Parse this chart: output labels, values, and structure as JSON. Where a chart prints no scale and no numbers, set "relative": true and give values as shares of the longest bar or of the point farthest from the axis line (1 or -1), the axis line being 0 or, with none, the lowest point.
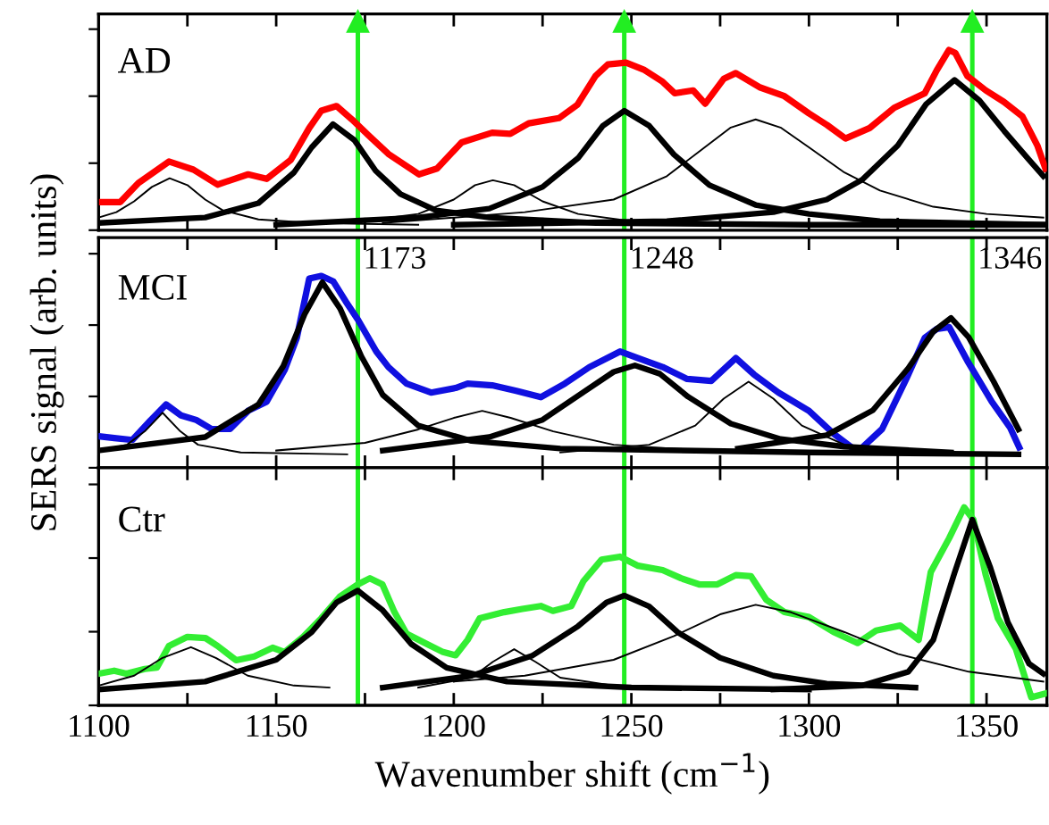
{
  "chart_data": [
    {
      "type": "line",
      "relative": true,
      "annotations": [
        "AD"
      ],
      "tick_labels": false,
      "xlim": [
        1100,
        1367
      ],
      "xticks": [
        1100,
        {
          "value": 1125,
          "label": null
        },
        1150,
        {
          "value": 1175,
          "label": null
        },
        1200,
        {
          "value": 1225,
          "label": null
        },
        1250,
        {
          "value": 1275,
          "label": null
        },
        1300,
        {
          "value": 1325,
          "label": null
        },
        1350
      ],
      "legend": false,
      "grid": false,
      "ref_lines": [
        {
          "axis": "x",
          "value": 1173,
          "color": "#22ee22"
        },
        {
          "axis": "x",
          "value": 1248,
          "color": "#22ee22"
        },
        {
          "axis": "x",
          "value": 1346,
          "color": "#22ee22"
        }
      ],
      "series": [
        {
          "color": "#ff0000",
          "x": [
            1101.0,
            1106.1,
            1111.2,
            1119.8,
            1126.7,
            1133.5,
            1142.1,
            1147.3,
            1154.1,
            1159.3,
            1162.7,
            1167.0,
            1171.3,
            1176.4,
            1181.6,
            1190.2,
            1195.3,
            1202.2,
            1210.8,
            1215.9,
            1221.1,
            1229.6,
            1234.8,
            1239.9,
            1243.4,
            1248.5,
            1253.7,
            1258.8,
            1262.2,
            1267.4,
            1270.8,
            1276.0,
            1279.4,
            1286.3,
            1293.1,
            1300.0,
            1305.1,
            1310.3,
            1317.1,
            1324.0,
            1332.6,
            1336.0,
            1339.4,
            1341.2,
            1344.6,
            1349.8,
            1354.9,
            1360.1,
            1364.3,
            1366.6
          ],
          "values": [
            0.156,
            0.156,
            0.262,
            0.381,
            0.336,
            0.253,
            0.31,
            0.285,
            0.39,
            0.567,
            0.663,
            0.689,
            0.615,
            0.519,
            0.423,
            0.31,
            0.342,
            0.487,
            0.541,
            0.535,
            0.593,
            0.622,
            0.696,
            0.856,
            0.92,
            0.93,
            0.889,
            0.824,
            0.76,
            0.776,
            0.702,
            0.84,
            0.872,
            0.792,
            0.744,
            0.648,
            0.584,
            0.509,
            0.567,
            0.679,
            0.76,
            0.888,
            1,
            0.984,
            0.856,
            0.776,
            0.712,
            0.632,
            0.471,
            0.342
          ]
        },
        {
          "color": "#000000",
          "x": [
            1100,
            1105,
            1110,
            1115,
            1120,
            1125,
            1130,
            1135,
            1145,
            1160,
            1190
          ],
          "values": [
            0.07,
            0.1,
            0.16,
            0.24,
            0.288,
            0.25,
            0.17,
            0.11,
            0.06,
            0.04,
            0.03
          ]
        },
        {
          "color": "#000000",
          "x": [
            1100,
            1130,
            1145,
            1155,
            1160,
            1166,
            1172,
            1178,
            1185,
            1195,
            1210,
            1240,
            1300,
            1366
          ],
          "values": [
            0.04,
            0.07,
            0.15,
            0.32,
            0.46,
            0.589,
            0.5,
            0.33,
            0.2,
            0.11,
            0.07,
            0.04,
            0.03,
            0.03
          ]
        },
        {
          "color": "#000000",
          "x": [
            1170,
            1190,
            1200,
            1206,
            1211,
            1217,
            1225,
            1235,
            1250,
            1280
          ],
          "values": [
            0.04,
            0.09,
            0.17,
            0.25,
            0.277,
            0.25,
            0.16,
            0.09,
            0.05,
            0.03
          ]
        },
        {
          "color": "#000000",
          "x": [
            1150,
            1190,
            1210,
            1225,
            1235,
            1242,
            1248,
            1255,
            1262,
            1272,
            1285,
            1300,
            1320,
            1366
          ],
          "values": [
            0.03,
            0.07,
            0.12,
            0.24,
            0.4,
            0.58,
            0.663,
            0.58,
            0.42,
            0.25,
            0.14,
            0.09,
            0.05,
            0.03
          ]
        },
        {
          "color": "#000000",
          "x": [
            1180,
            1220,
            1245,
            1260,
            1270,
            1278,
            1285,
            1292,
            1300,
            1310,
            1320,
            1335,
            1350,
            1366
          ],
          "values": [
            0.04,
            0.1,
            0.17,
            0.3,
            0.45,
            0.57,
            0.615,
            0.57,
            0.46,
            0.32,
            0.22,
            0.13,
            0.09,
            0.07
          ]
        },
        {
          "color": "#000000",
          "x": [
            1200,
            1260,
            1290,
            1305,
            1315,
            1325,
            1333,
            1341,
            1348,
            1355,
            1362,
            1366
          ],
          "values": [
            0.03,
            0.05,
            0.1,
            0.17,
            0.28,
            0.47,
            0.7,
            0.834,
            0.72,
            0.55,
            0.39,
            0.3
          ]
        }
      ]
    },
    {
      "type": "line",
      "relative": true,
      "annotations": [
        "MCI"
      ],
      "ylabel": "SERS signal (arb. units)",
      "tick_labels": false,
      "xlim": [
        1100,
        1367
      ],
      "xticks": [
        1100,
        {
          "value": 1125,
          "label": null
        },
        1150,
        {
          "value": 1175,
          "label": null
        },
        1200,
        {
          "value": 1225,
          "label": null
        },
        1250,
        {
          "value": 1275,
          "label": null
        },
        1300,
        {
          "value": 1325,
          "label": null
        },
        1350
      ],
      "legend": false,
      "grid": false,
      "ref_lines": [
        {
          "axis": "x",
          "value": 1173,
          "label": "1173",
          "color": "#22ee22"
        },
        {
          "axis": "x",
          "value": 1248,
          "label": "1248",
          "color": "#22ee22"
        },
        {
          "axis": "x",
          "value": 1346,
          "label": "1346",
          "color": "#22ee22"
        }
      ],
      "series": [
        {
          "color": "#1010e0",
          "x": [
            1100.1,
            1104.4,
            1109.5,
            1114.7,
            1119.0,
            1123.2,
            1127.5,
            1131.8,
            1137.0,
            1142.1,
            1147.3,
            1152.4,
            1155.8,
            1159.3,
            1162.7,
            1166.1,
            1169.6,
            1173.0,
            1178.2,
            1181.6,
            1186.7,
            1193.6,
            1200.5,
            1203.9,
            1210.8,
            1217.6,
            1224.5,
            1231.3,
            1238.2,
            1246.8,
            1251.9,
            1258.8,
            1265.7,
            1272.5,
            1279.4,
            1284.5,
            1291.4,
            1300.0,
            1306.9,
            1313.7,
            1320.6,
            1327.4,
            1332.6,
            1336.0,
            1339.5,
            1344.6,
            1351.5,
            1356.6,
            1359.2
          ],
          "values": [
            0.164,
            0.155,
            0.145,
            0.249,
            0.33,
            0.273,
            0.249,
            0.202,
            0.202,
            0.297,
            0.344,
            0.511,
            0.677,
            0.986,
            1,
            0.971,
            0.867,
            0.772,
            0.606,
            0.525,
            0.439,
            0.392,
            0.416,
            0.439,
            0.43,
            0.401,
            0.368,
            0.439,
            0.525,
            0.606,
            0.572,
            0.525,
            0.463,
            0.453,
            0.572,
            0.487,
            0.392,
            0.297,
            0.178,
            0.083,
            0.202,
            0.463,
            0.677,
            0.724,
            0.733,
            0.558,
            0.344,
            0.211,
            0.107
          ]
        },
        {
          "color": "#000000",
          "x": [
            1100,
            1108,
            1113,
            1118,
            1123,
            1128,
            1140,
            1170
          ],
          "values": [
            0.09,
            0.12,
            0.19,
            0.287,
            0.19,
            0.12,
            0.08,
            0.07
          ]
        },
        {
          "color": "#000000",
          "x": [
            1100,
            1130,
            1145,
            1152,
            1158,
            1163,
            1168,
            1174,
            1180,
            1190,
            1205,
            1230,
            1300,
            1359
          ],
          "values": [
            0.09,
            0.16,
            0.33,
            0.53,
            0.8,
            0.967,
            0.83,
            0.58,
            0.38,
            0.22,
            0.14,
            0.1,
            0.08,
            0.07
          ]
        },
        {
          "color": "#000000",
          "x": [
            1150,
            1175,
            1190,
            1200,
            1208,
            1216,
            1228,
            1245,
            1270
          ],
          "values": [
            0.09,
            0.13,
            0.2,
            0.26,
            0.297,
            0.26,
            0.19,
            0.12,
            0.09
          ]
        },
        {
          "color": "#000000",
          "x": [
            1180,
            1210,
            1225,
            1237,
            1245,
            1251,
            1258,
            1266,
            1278,
            1292,
            1310,
            1340
          ],
          "values": [
            0.09,
            0.16,
            0.25,
            0.4,
            0.5,
            0.534,
            0.49,
            0.37,
            0.23,
            0.15,
            0.11,
            0.08
          ]
        },
        {
          "color": "#000000",
          "x": [
            1230,
            1255,
            1268,
            1276,
            1283,
            1290,
            1298,
            1310,
            1330
          ],
          "values": [
            0.08,
            0.12,
            0.22,
            0.36,
            0.449,
            0.36,
            0.22,
            0.12,
            0.08
          ]
        },
        {
          "color": "#000000",
          "x": [
            1280,
            1305,
            1318,
            1328,
            1335,
            1340,
            1345,
            1352,
            1359
          ],
          "values": [
            0.1,
            0.17,
            0.3,
            0.52,
            0.71,
            0.781,
            0.68,
            0.45,
            0.2
          ]
        }
      ]
    },
    {
      "type": "line",
      "relative": true,
      "annotations": [
        "Ctr"
      ],
      "xlabel": "Wavenumber shift (cm$^{−1}$)",
      "tick_labels": "x",
      "xlim": [
        1100,
        1367
      ],
      "xticks": [
        1100,
        {
          "value": 1125,
          "label": null
        },
        1150,
        {
          "value": 1175,
          "label": null
        },
        1200,
        {
          "value": 1225,
          "label": null
        },
        1250,
        {
          "value": 1275,
          "label": null
        },
        1300,
        {
          "value": 1325,
          "label": null
        },
        1350
      ],
      "legend": false,
      "grid": false,
      "ref_lines": [
        {
          "axis": "x",
          "value": 1173,
          "color": "#22ee22"
        },
        {
          "axis": "x",
          "value": 1248,
          "color": "#22ee22"
        },
        {
          "axis": "x",
          "value": 1346,
          "color": "#22ee22"
        }
      ],
      "series": [
        {
          "color": "#33ee33",
          "x": [
            1100.1,
            1104.4,
            1107.8,
            1113.0,
            1116.4,
            1119.8,
            1125.0,
            1130.1,
            1133.5,
            1138.7,
            1143.8,
            1149.0,
            1152.4,
            1157.6,
            1162.7,
            1167.9,
            1173.0,
            1176.4,
            1179.9,
            1183.3,
            1186.7,
            1191.9,
            1197.0,
            1200.5,
            1203.9,
            1207.3,
            1214.2,
            1219.3,
            1224.5,
            1227.9,
            1233.1,
            1236.5,
            1241.6,
            1246.8,
            1251.9,
            1258.8,
            1264.0,
            1269.1,
            1274.2,
            1279.4,
            1283.7,
            1288.0,
            1293.1,
            1300.0,
            1306.9,
            1313.7,
            1318.9,
            1325.7,
            1330.9,
            1334.3,
            1339.5,
            1343.7,
            1346.3,
            1349.8,
            1353.2,
            1358.3,
            1362.6,
            1366.6
          ],
          "values": [
            0.16,
            0.175,
            0.16,
            0.184,
            0.191,
            0.3,
            0.346,
            0.34,
            0.3,
            0.228,
            0.247,
            0.291,
            0.269,
            0.346,
            0.44,
            0.549,
            0.611,
            0.642,
            0.611,
            0.471,
            0.362,
            0.315,
            0.269,
            0.253,
            0.331,
            0.44,
            0.471,
            0.487,
            0.502,
            0.477,
            0.502,
            0.627,
            0.736,
            0.751,
            0.705,
            0.683,
            0.642,
            0.611,
            0.611,
            0.658,
            0.652,
            0.533,
            0.471,
            0.446,
            0.371,
            0.315,
            0.378,
            0.403,
            0.331,
            0.673,
            0.845,
            1,
            0.938,
            0.658,
            0.44,
            0.284,
            0.041,
            0.06
          ]
        },
        {
          "color": "#000000",
          "x": [
            1100,
            1110,
            1118,
            1126,
            1133,
            1142,
            1155,
            1165
          ],
          "values": [
            0.1,
            0.15,
            0.24,
            0.294,
            0.24,
            0.15,
            0.1,
            0.09
          ]
        },
        {
          "color": "#000000",
          "x": [
            1100,
            1130,
            1150,
            1160,
            1167,
            1173,
            1180,
            1188,
            1198,
            1215,
            1250,
            1300
          ],
          "values": [
            0.08,
            0.12,
            0.23,
            0.37,
            0.52,
            0.58,
            0.48,
            0.31,
            0.19,
            0.12,
            0.09,
            0.08
          ]
        },
        {
          "color": "#000000",
          "x": [
            1190,
            1205,
            1211,
            1217,
            1223,
            1230,
            1245,
            1270
          ],
          "values": [
            0.09,
            0.14,
            0.22,
            0.284,
            0.22,
            0.14,
            0.1,
            0.08
          ]
        },
        {
          "color": "#000000",
          "x": [
            1180,
            1205,
            1222,
            1235,
            1243,
            1248,
            1255,
            1263,
            1275,
            1290,
            1305,
            1330
          ],
          "values": [
            0.09,
            0.15,
            0.25,
            0.4,
            0.52,
            0.555,
            0.5,
            0.37,
            0.24,
            0.15,
            0.11,
            0.09
          ]
        },
        {
          "color": "#000000",
          "x": [
            1200,
            1220,
            1245,
            1262,
            1275,
            1285,
            1295,
            1310,
            1325,
            1345,
            1366
          ],
          "values": [
            0.12,
            0.15,
            0.23,
            0.35,
            0.46,
            0.508,
            0.47,
            0.37,
            0.26,
            0.17,
            0.12
          ]
        },
        {
          "color": "#000000",
          "x": [
            1290,
            1315,
            1328,
            1335,
            1341,
            1346,
            1351,
            1356,
            1362,
            1366
          ],
          "values": [
            0.08,
            0.1,
            0.17,
            0.33,
            0.67,
            0.938,
            0.7,
            0.42,
            0.21,
            0.16
          ]
        }
      ]
    }
  ]
}
